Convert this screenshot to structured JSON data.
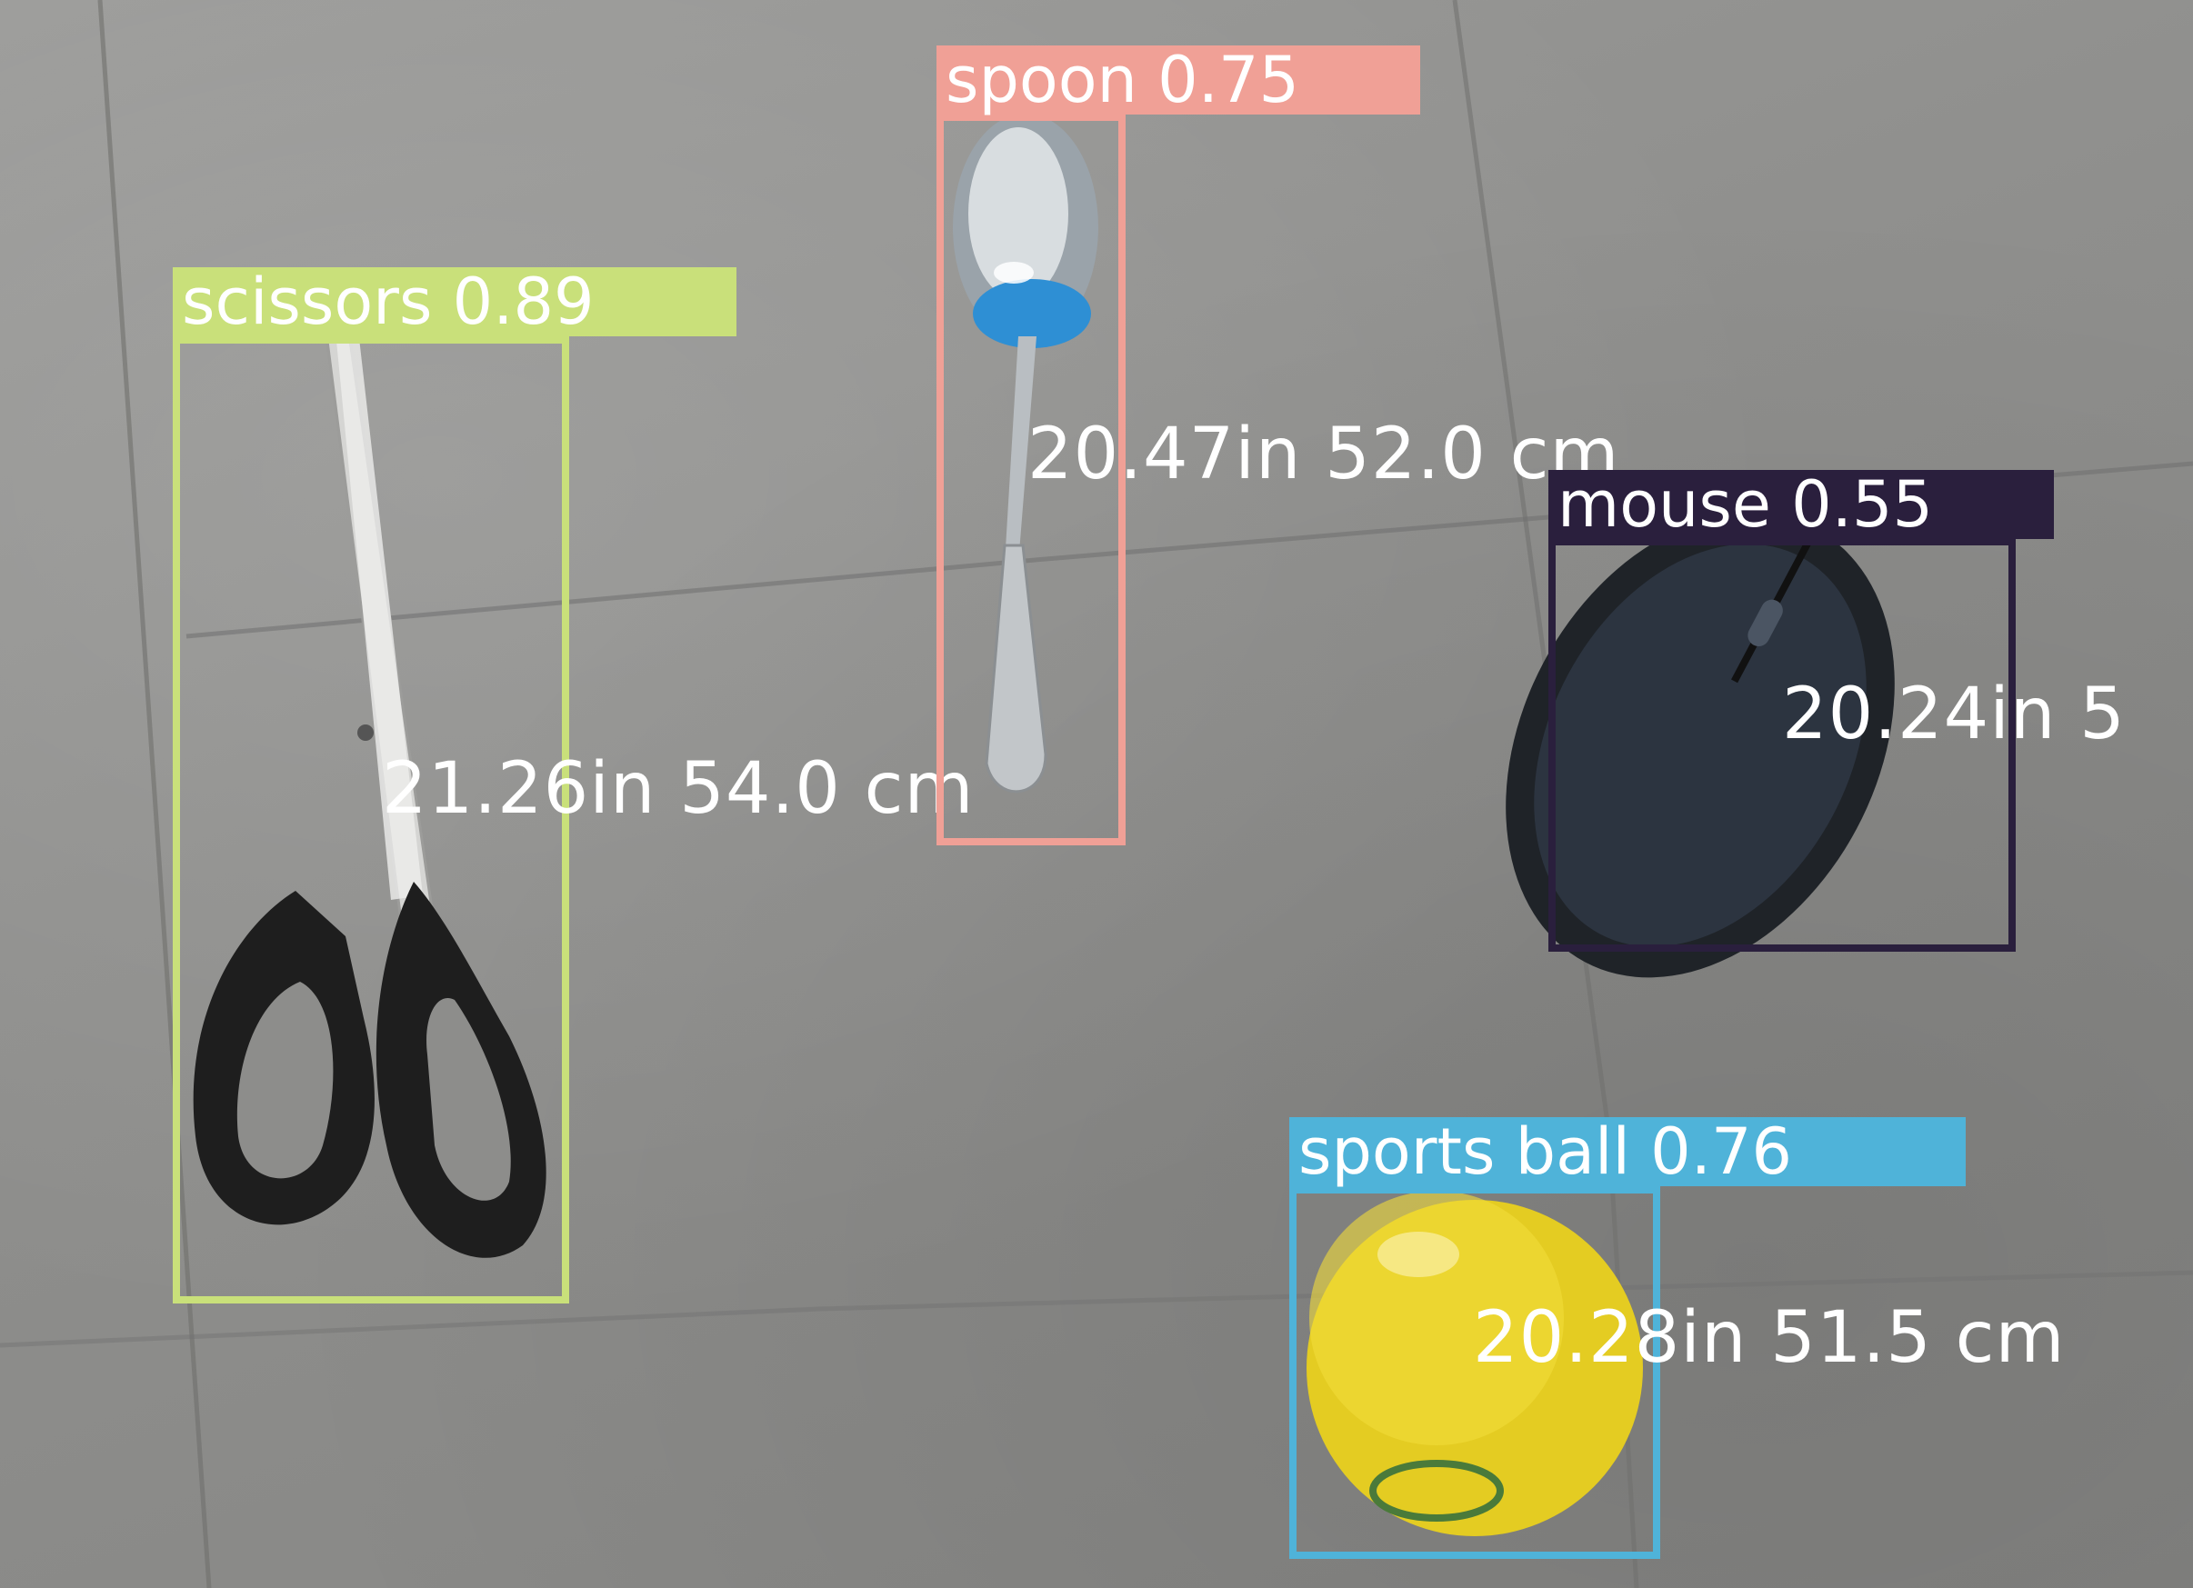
{
  "colors": {
    "scissors": "#c9e07a",
    "spoon": "#f0a096",
    "mouse": "#2a1f3d",
    "sports_ball": "#4fb3d9"
  },
  "detections": [
    {
      "id": "scissors",
      "label": "scissors 0.89",
      "distance": "21.26in 54.0 cm"
    },
    {
      "id": "spoon",
      "label": "spoon 0.75",
      "distance": "20.47in 52.0 cm"
    },
    {
      "id": "mouse",
      "label": "mouse 0.55",
      "distance": "20.24in 5"
    },
    {
      "id": "sports_ball",
      "label": "sports ball 0.76",
      "distance": "20.28in 51.5 cm"
    }
  ]
}
